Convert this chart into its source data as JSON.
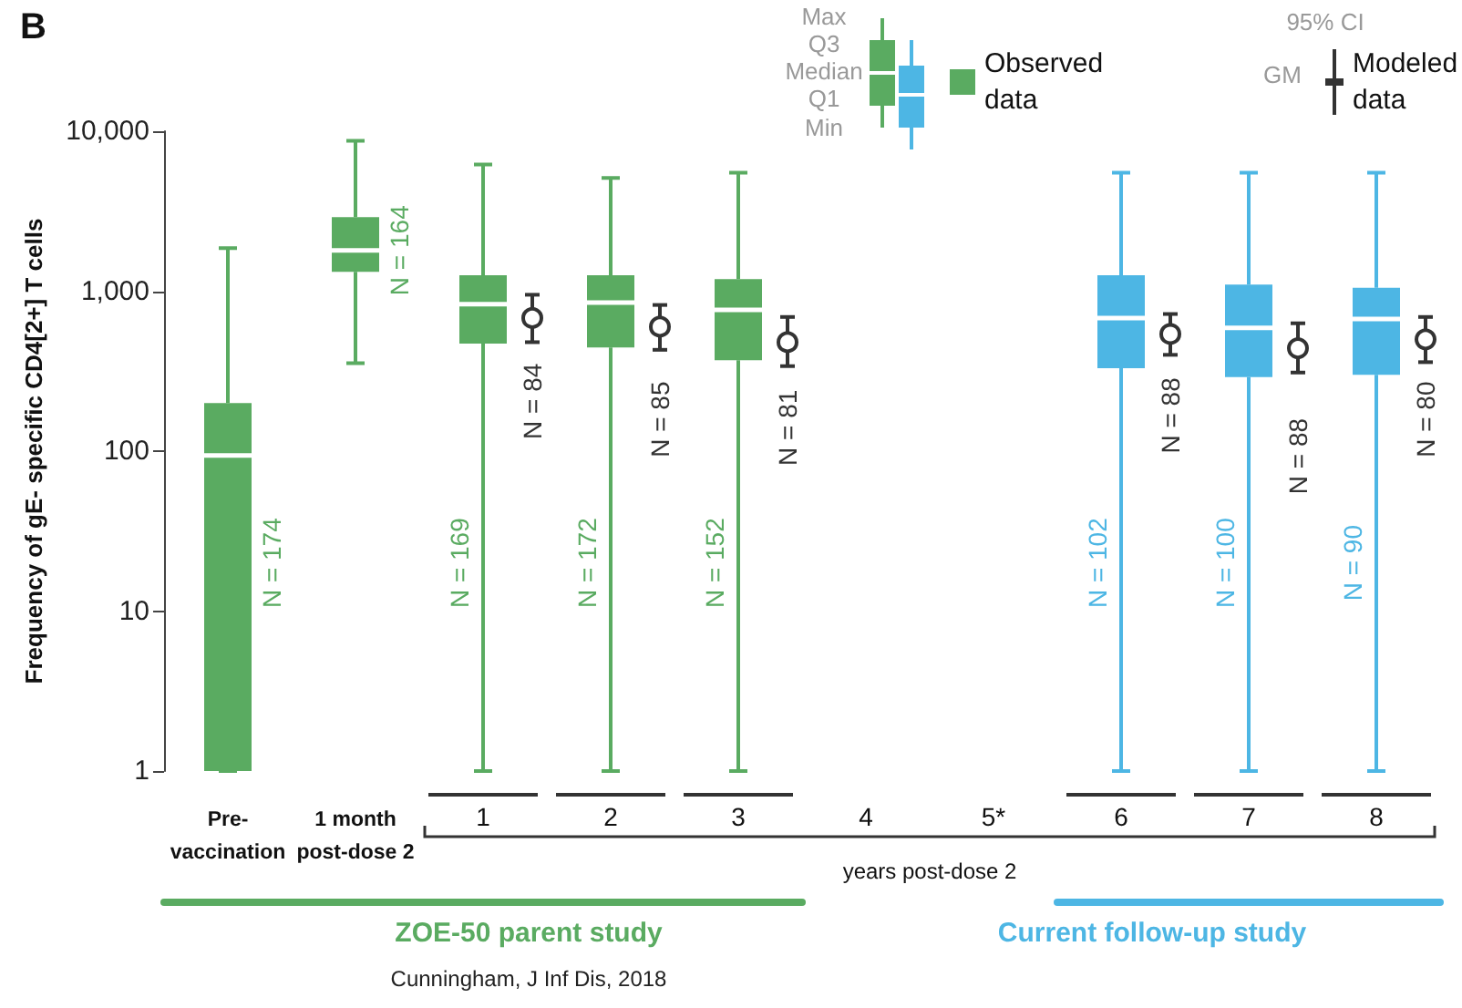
{
  "chart_data": {
    "type": "box",
    "title": "B",
    "ylabel": "Frequency of gE- specific CD4[2+] T cells",
    "xlabel": "years post-dose 2",
    "categories": [
      "Pre-vaccination",
      "1 month post-dose 2",
      "1",
      "2",
      "3",
      "4",
      "5*",
      "6",
      "7",
      "8"
    ],
    "log": "y",
    "ylim": [
      1,
      10000
    ],
    "yticks": [
      {
        "value": 1,
        "label": "1"
      },
      {
        "value": 10,
        "label": "10"
      },
      {
        "value": 100,
        "label": "100"
      },
      {
        "value": 1000,
        "label": "1,000"
      },
      {
        "value": 10000,
        "label": "10,000"
      }
    ],
    "grid": false,
    "legend": "top right",
    "marker": "circle",
    "series": [
      {
        "type": "box",
        "name": "Observed data",
        "colors": [
          "#5aab61",
          "#5aab61",
          "#5aab61",
          "#5aab61",
          "#5aab61",
          null,
          null,
          "#4db6e4",
          "#4db6e4",
          "#4db6e4"
        ],
        "boxes": [
          {
            "low": 1,
            "q1": 1,
            "median": 94,
            "q3": 200,
            "high": 1860
          },
          {
            "low": 355,
            "q1": 1320,
            "median": 1800,
            "q3": 2900,
            "high": 8700
          },
          {
            "low": 1,
            "q1": 470,
            "median": 830,
            "q3": 1260,
            "high": 6200
          },
          {
            "low": 1,
            "q1": 445,
            "median": 850,
            "q3": 1260,
            "high": 5100
          },
          {
            "low": 1,
            "q1": 370,
            "median": 765,
            "q3": 1190,
            "high": 5500
          },
          null,
          null,
          {
            "low": 1,
            "q1": 330,
            "median": 680,
            "q3": 1260,
            "high": 5500
          },
          {
            "low": 1,
            "q1": 290,
            "median": 590,
            "q3": 1100,
            "high": 5500
          },
          {
            "low": 1,
            "q1": 300,
            "median": 670,
            "q3": 1050,
            "high": 5500
          }
        ],
        "value_labels": [
          "N = 174",
          "N = 164",
          "N = 169",
          "N = 172",
          "N = 152",
          null,
          null,
          "N = 102",
          "N = 100",
          "N = 90"
        ]
      },
      {
        "type": "scatter",
        "name": "Modeled data",
        "color": "#333333",
        "values": [
          null,
          null,
          680,
          600,
          480,
          null,
          null,
          540,
          440,
          500
        ],
        "errors": [
          null,
          null,
          [
            480,
            950
          ],
          [
            430,
            820
          ],
          [
            340,
            690
          ],
          null,
          null,
          [
            400,
            720
          ],
          [
            310,
            630
          ],
          [
            360,
            690
          ]
        ]
      }
    ],
    "annotations": [
      "Max",
      "Q3",
      "Median",
      "Q1",
      "Min",
      "95% CI",
      "GM",
      "ZOE-50 parent study",
      "Current follow-up study",
      "Cunningham, J Inf Dis, 2018",
      "N = 84",
      "N = 85",
      "N = 81",
      "N = 88",
      "N = 88",
      "N = 80"
    ]
  }
}
